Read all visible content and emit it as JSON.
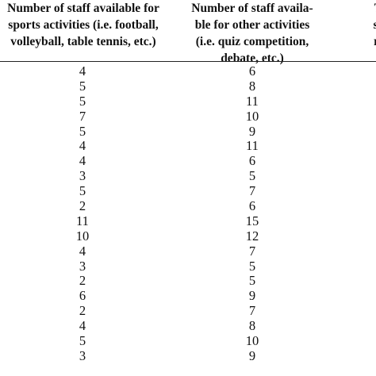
{
  "table": {
    "headers": {
      "sports": [
        "Number of staff available for",
        "sports activities (i.e. football,",
        "volleyball, table tennis, etc.)"
      ],
      "other": [
        "Number of staff availa-",
        "ble for other activities",
        "(i.e. quiz competition,",
        "debate, etc.)"
      ],
      "third": [
        "To",
        "sta",
        "ric"
      ]
    },
    "columns": {
      "sports": [
        "4",
        "5",
        "5",
        "7",
        "5",
        "4",
        "4",
        "3",
        "5",
        "2",
        "11",
        "10",
        "4",
        "3",
        "2",
        "6",
        "2",
        "4",
        "5",
        "3"
      ],
      "other": [
        "6",
        "8",
        "11",
        "10",
        "9",
        "11",
        "6",
        "5",
        "7",
        "6",
        "15",
        "12",
        "7",
        "5",
        "5",
        "9",
        "7",
        "8",
        "10",
        "9"
      ]
    }
  }
}
